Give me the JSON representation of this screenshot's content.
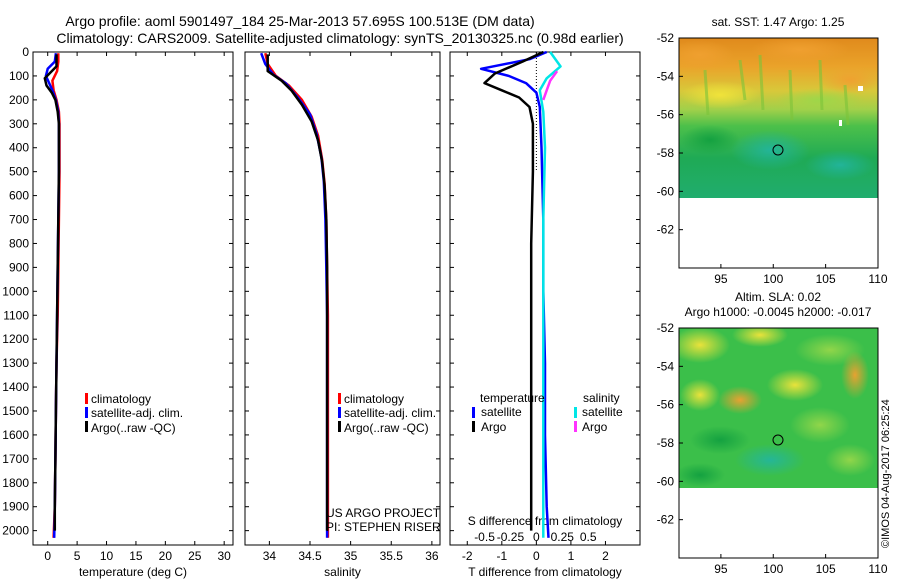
{
  "header": {
    "line1": "Argo profile: aoml 5901497_184 25-Mar-2013 57.695S 100.513E (DM data)",
    "line2": "Climatology: CARS2009. Satellite-adjusted climatology: synTS_20130325.nc (0.98d earlier)"
  },
  "colors": {
    "climatology": "#ff0000",
    "satellite": "#0000ff",
    "argo": "#000000",
    "sal_satellite": "#00e6e6",
    "sal_argo": "#ff33ff"
  },
  "credits": {
    "project": "US ARGO PROJECT",
    "pi": "PI: STEPHEN RISER",
    "stamp": "©IMOS 04-Aug-2017 06:25:24"
  },
  "chart_data": [
    {
      "type": "line",
      "id": "temperature",
      "xlabel": "temperature (deg C)",
      "ylabel": "",
      "xlim": [
        -2.5,
        31.5
      ],
      "ylim": [
        2060,
        0
      ],
      "xticks": [
        0,
        5,
        10,
        15,
        20,
        25,
        30
      ],
      "xtick_labels": [
        "0",
        "5",
        "10",
        "15",
        "20",
        "25",
        "30"
      ],
      "yticks": [
        0,
        100,
        200,
        300,
        400,
        500,
        600,
        700,
        800,
        900,
        1000,
        1100,
        1200,
        1300,
        1400,
        1500,
        1600,
        1700,
        1800,
        1900,
        2000
      ],
      "ytick_labels": [
        "0",
        "100",
        "200",
        "300",
        "400",
        "500",
        "600",
        "700",
        "800",
        "900",
        "1000",
        "1100",
        "1200",
        "1300",
        "1400",
        "1500",
        "1600",
        "1700",
        "1800",
        "1900",
        "2000"
      ],
      "legend": [
        "climatology",
        "satellite-adj. clim.",
        "Argo(..raw -QC)"
      ],
      "series": [
        {
          "name": "climatology",
          "color": "#ff0000",
          "points": [
            [
              1.8,
              5
            ],
            [
              1.8,
              40
            ],
            [
              1.6,
              80
            ],
            [
              0.8,
              120
            ],
            [
              1.0,
              160
            ],
            [
              1.5,
              200
            ],
            [
              1.9,
              250
            ],
            [
              2.0,
              300
            ],
            [
              2.0,
              500
            ],
            [
              1.9,
              700
            ],
            [
              1.8,
              900
            ],
            [
              1.7,
              1100
            ],
            [
              1.5,
              1300
            ],
            [
              1.4,
              1500
            ],
            [
              1.3,
              1700
            ],
            [
              1.2,
              1900
            ],
            [
              1.0,
              2030
            ]
          ]
        },
        {
          "name": "satellite-adj. clim.",
          "color": "#0000ff",
          "points": [
            [
              1.4,
              5
            ],
            [
              1.2,
              40
            ],
            [
              0.0,
              70
            ],
            [
              -0.3,
              100
            ],
            [
              0.8,
              160
            ],
            [
              1.4,
              200
            ],
            [
              1.8,
              250
            ],
            [
              1.9,
              300
            ],
            [
              1.9,
              500
            ],
            [
              1.8,
              700
            ],
            [
              1.7,
              900
            ],
            [
              1.6,
              1100
            ],
            [
              1.5,
              1300
            ],
            [
              1.4,
              1500
            ],
            [
              1.3,
              1700
            ],
            [
              1.2,
              1900
            ],
            [
              1.1,
              2030
            ]
          ]
        },
        {
          "name": "Argo(..raw -QC)",
          "color": "#000000",
          "points": [
            [
              1.5,
              10
            ],
            [
              1.5,
              60
            ],
            [
              -0.5,
              110
            ],
            [
              -0.2,
              140
            ],
            [
              0.7,
              170
            ],
            [
              1.3,
              200
            ],
            [
              1.7,
              250
            ],
            [
              1.9,
              300
            ],
            [
              1.9,
              500
            ],
            [
              1.8,
              700
            ],
            [
              1.7,
              900
            ],
            [
              1.6,
              1100
            ],
            [
              1.5,
              1300
            ],
            [
              1.4,
              1500
            ],
            [
              1.3,
              1700
            ],
            [
              1.2,
              1900
            ],
            [
              1.2,
              2000
            ]
          ]
        }
      ]
    },
    {
      "type": "line",
      "id": "salinity",
      "xlabel": "salinity",
      "ylabel": "",
      "xlim": [
        33.7,
        36.1
      ],
      "ylim": [
        2060,
        0
      ],
      "xticks": [
        34,
        34.5,
        35,
        35.5,
        36
      ],
      "xtick_labels": [
        "34",
        "34.5",
        "35",
        "35.5",
        "36"
      ],
      "yticks": [
        0,
        100,
        200,
        300,
        400,
        500,
        600,
        700,
        800,
        900,
        1000,
        1100,
        1200,
        1300,
        1400,
        1500,
        1600,
        1700,
        1800,
        1900,
        2000
      ],
      "legend": [
        "climatology",
        "satellite-adj. clim.",
        "Argo(..raw -QC)"
      ],
      "series": [
        {
          "name": "climatology",
          "color": "#ff0000",
          "points": [
            [
              33.95,
              5
            ],
            [
              33.98,
              50
            ],
            [
              34.08,
              100
            ],
            [
              34.24,
              140
            ],
            [
              34.4,
              200
            ],
            [
              34.52,
              270
            ],
            [
              34.6,
              350
            ],
            [
              34.65,
              450
            ],
            [
              34.68,
              550
            ],
            [
              34.7,
              700
            ],
            [
              34.71,
              900
            ],
            [
              34.72,
              1100
            ],
            [
              34.72,
              1400
            ],
            [
              34.72,
              1700
            ],
            [
              34.72,
              2030
            ]
          ]
        },
        {
          "name": "satellite-adj. clim.",
          "color": "#0000ff",
          "points": [
            [
              33.9,
              5
            ],
            [
              33.95,
              50
            ],
            [
              34.05,
              95
            ],
            [
              34.2,
              130
            ],
            [
              34.35,
              190
            ],
            [
              34.5,
              260
            ],
            [
              34.58,
              340
            ],
            [
              34.64,
              440
            ],
            [
              34.67,
              540
            ],
            [
              34.69,
              700
            ],
            [
              34.7,
              900
            ],
            [
              34.71,
              1100
            ],
            [
              34.71,
              1400
            ],
            [
              34.71,
              1700
            ],
            [
              34.71,
              2030
            ]
          ]
        },
        {
          "name": "Argo(..raw -QC)",
          "color": "#000000",
          "points": [
            [
              33.98,
              10
            ],
            [
              33.98,
              80
            ],
            [
              34.15,
              120
            ],
            [
              34.27,
              160
            ],
            [
              34.4,
              220
            ],
            [
              34.52,
              290
            ],
            [
              34.6,
              370
            ],
            [
              34.65,
              460
            ],
            [
              34.68,
              560
            ],
            [
              34.7,
              700
            ],
            [
              34.71,
              900
            ],
            [
              34.71,
              1100
            ],
            [
              34.71,
              1400
            ],
            [
              34.71,
              1700
            ],
            [
              34.71,
              2000
            ]
          ]
        }
      ]
    },
    {
      "type": "line",
      "id": "differences",
      "xlabel": "T difference from climatology",
      "xlabel2": "S difference from climatology",
      "xlim": [
        -2.5,
        3.0
      ],
      "ylim": [
        2060,
        0
      ],
      "xticks": [
        -2,
        -1,
        0,
        1,
        2
      ],
      "xtick_labels": [
        "-2",
        "-1",
        "0",
        "1",
        "2"
      ],
      "top_ticks": [
        -0.5,
        -0.25,
        0,
        0.25,
        0.5
      ],
      "top_tick_labels": [
        "-0.5",
        "-0.25",
        "0",
        "0.25",
        "0.5"
      ],
      "top_ticks_t_equiv": [
        -1.5,
        -0.75,
        0,
        0.75,
        1.5
      ],
      "legend_temperature": "temperature",
      "legend_salinity": "salinity",
      "legend_items": [
        "satellite",
        "Argo"
      ],
      "series": [
        {
          "name": "T satellite",
          "color": "#0000ff",
          "points": [
            [
              0.3,
              0
            ],
            [
              -0.2,
              30
            ],
            [
              -1.6,
              70
            ],
            [
              -0.8,
              100
            ],
            [
              -0.3,
              130
            ],
            [
              0.0,
              170
            ],
            [
              0.1,
              230
            ],
            [
              0.15,
              400
            ],
            [
              0.2,
              700
            ],
            [
              0.2,
              1000
            ],
            [
              0.25,
              1300
            ],
            [
              0.25,
              1600
            ],
            [
              0.3,
              1900
            ],
            [
              0.35,
              2030
            ]
          ]
        },
        {
          "name": "T Argo",
          "color": "#000000",
          "points": [
            [
              0.2,
              0
            ],
            [
              -0.4,
              40
            ],
            [
              -1.2,
              90
            ],
            [
              -1.5,
              130
            ],
            [
              -1.0,
              160
            ],
            [
              -0.5,
              190
            ],
            [
              -0.2,
              230
            ],
            [
              -0.1,
              300
            ],
            [
              -0.1,
              500
            ],
            [
              -0.15,
              800
            ],
            [
              -0.15,
              1100
            ],
            [
              -0.15,
              1400
            ],
            [
              -0.15,
              1700
            ],
            [
              -0.15,
              2000
            ]
          ]
        },
        {
          "name": "S satellite",
          "color": "#00e6e6",
          "points": [
            [
              0.4,
              0
            ],
            [
              0.7,
              60
            ],
            [
              0.3,
              110
            ],
            [
              0.1,
              160
            ],
            [
              0.2,
              250
            ],
            [
              0.25,
              400
            ],
            [
              0.2,
              700
            ],
            [
              0.2,
              1000
            ],
            [
              0.2,
              1300
            ],
            [
              0.2,
              1600
            ],
            [
              0.2,
              1900
            ],
            [
              0.2,
              2030
            ]
          ]
        },
        {
          "name": "S Argo",
          "color": "#ff33ff",
          "points": [
            [
              0.6,
              80
            ],
            [
              0.4,
              120
            ],
            [
              0.3,
              160
            ],
            [
              0.2,
              200
            ]
          ]
        }
      ]
    },
    {
      "type": "heatmap",
      "id": "sst_map",
      "title": "sat. SST: 1.47 Argo: 1.25",
      "xlim": [
        91,
        110
      ],
      "ylim": [
        -64,
        -52
      ],
      "xticks": [
        95,
        100,
        105,
        110
      ],
      "xtick_labels": [
        "95",
        "100",
        "105",
        "110"
      ],
      "yticks": [
        -52,
        -54,
        -56,
        -58,
        -60,
        -62
      ],
      "ytick_labels": [
        "-52",
        "-54",
        "-56",
        "-58",
        "-60",
        "-62"
      ],
      "data_extent_lat": [
        -60,
        -52
      ],
      "marker": [
        100.513,
        -57.695
      ]
    },
    {
      "type": "heatmap",
      "id": "sla_map",
      "title": "Altim. SLA: 0.02",
      "subtitle": "Argo h1000: -0.0045 h2000: -0.017",
      "xlim": [
        91,
        110
      ],
      "ylim": [
        -64,
        -52
      ],
      "xticks": [
        95,
        100,
        105,
        110
      ],
      "xtick_labels": [
        "95",
        "100",
        "105",
        "110"
      ],
      "yticks": [
        -52,
        -54,
        -56,
        -58,
        -60,
        -62
      ],
      "ytick_labels": [
        "-52",
        "-54",
        "-56",
        "-58",
        "-60",
        "-62"
      ],
      "data_extent_lat": [
        -60,
        -52
      ],
      "marker": [
        100.513,
        -57.695
      ]
    }
  ]
}
